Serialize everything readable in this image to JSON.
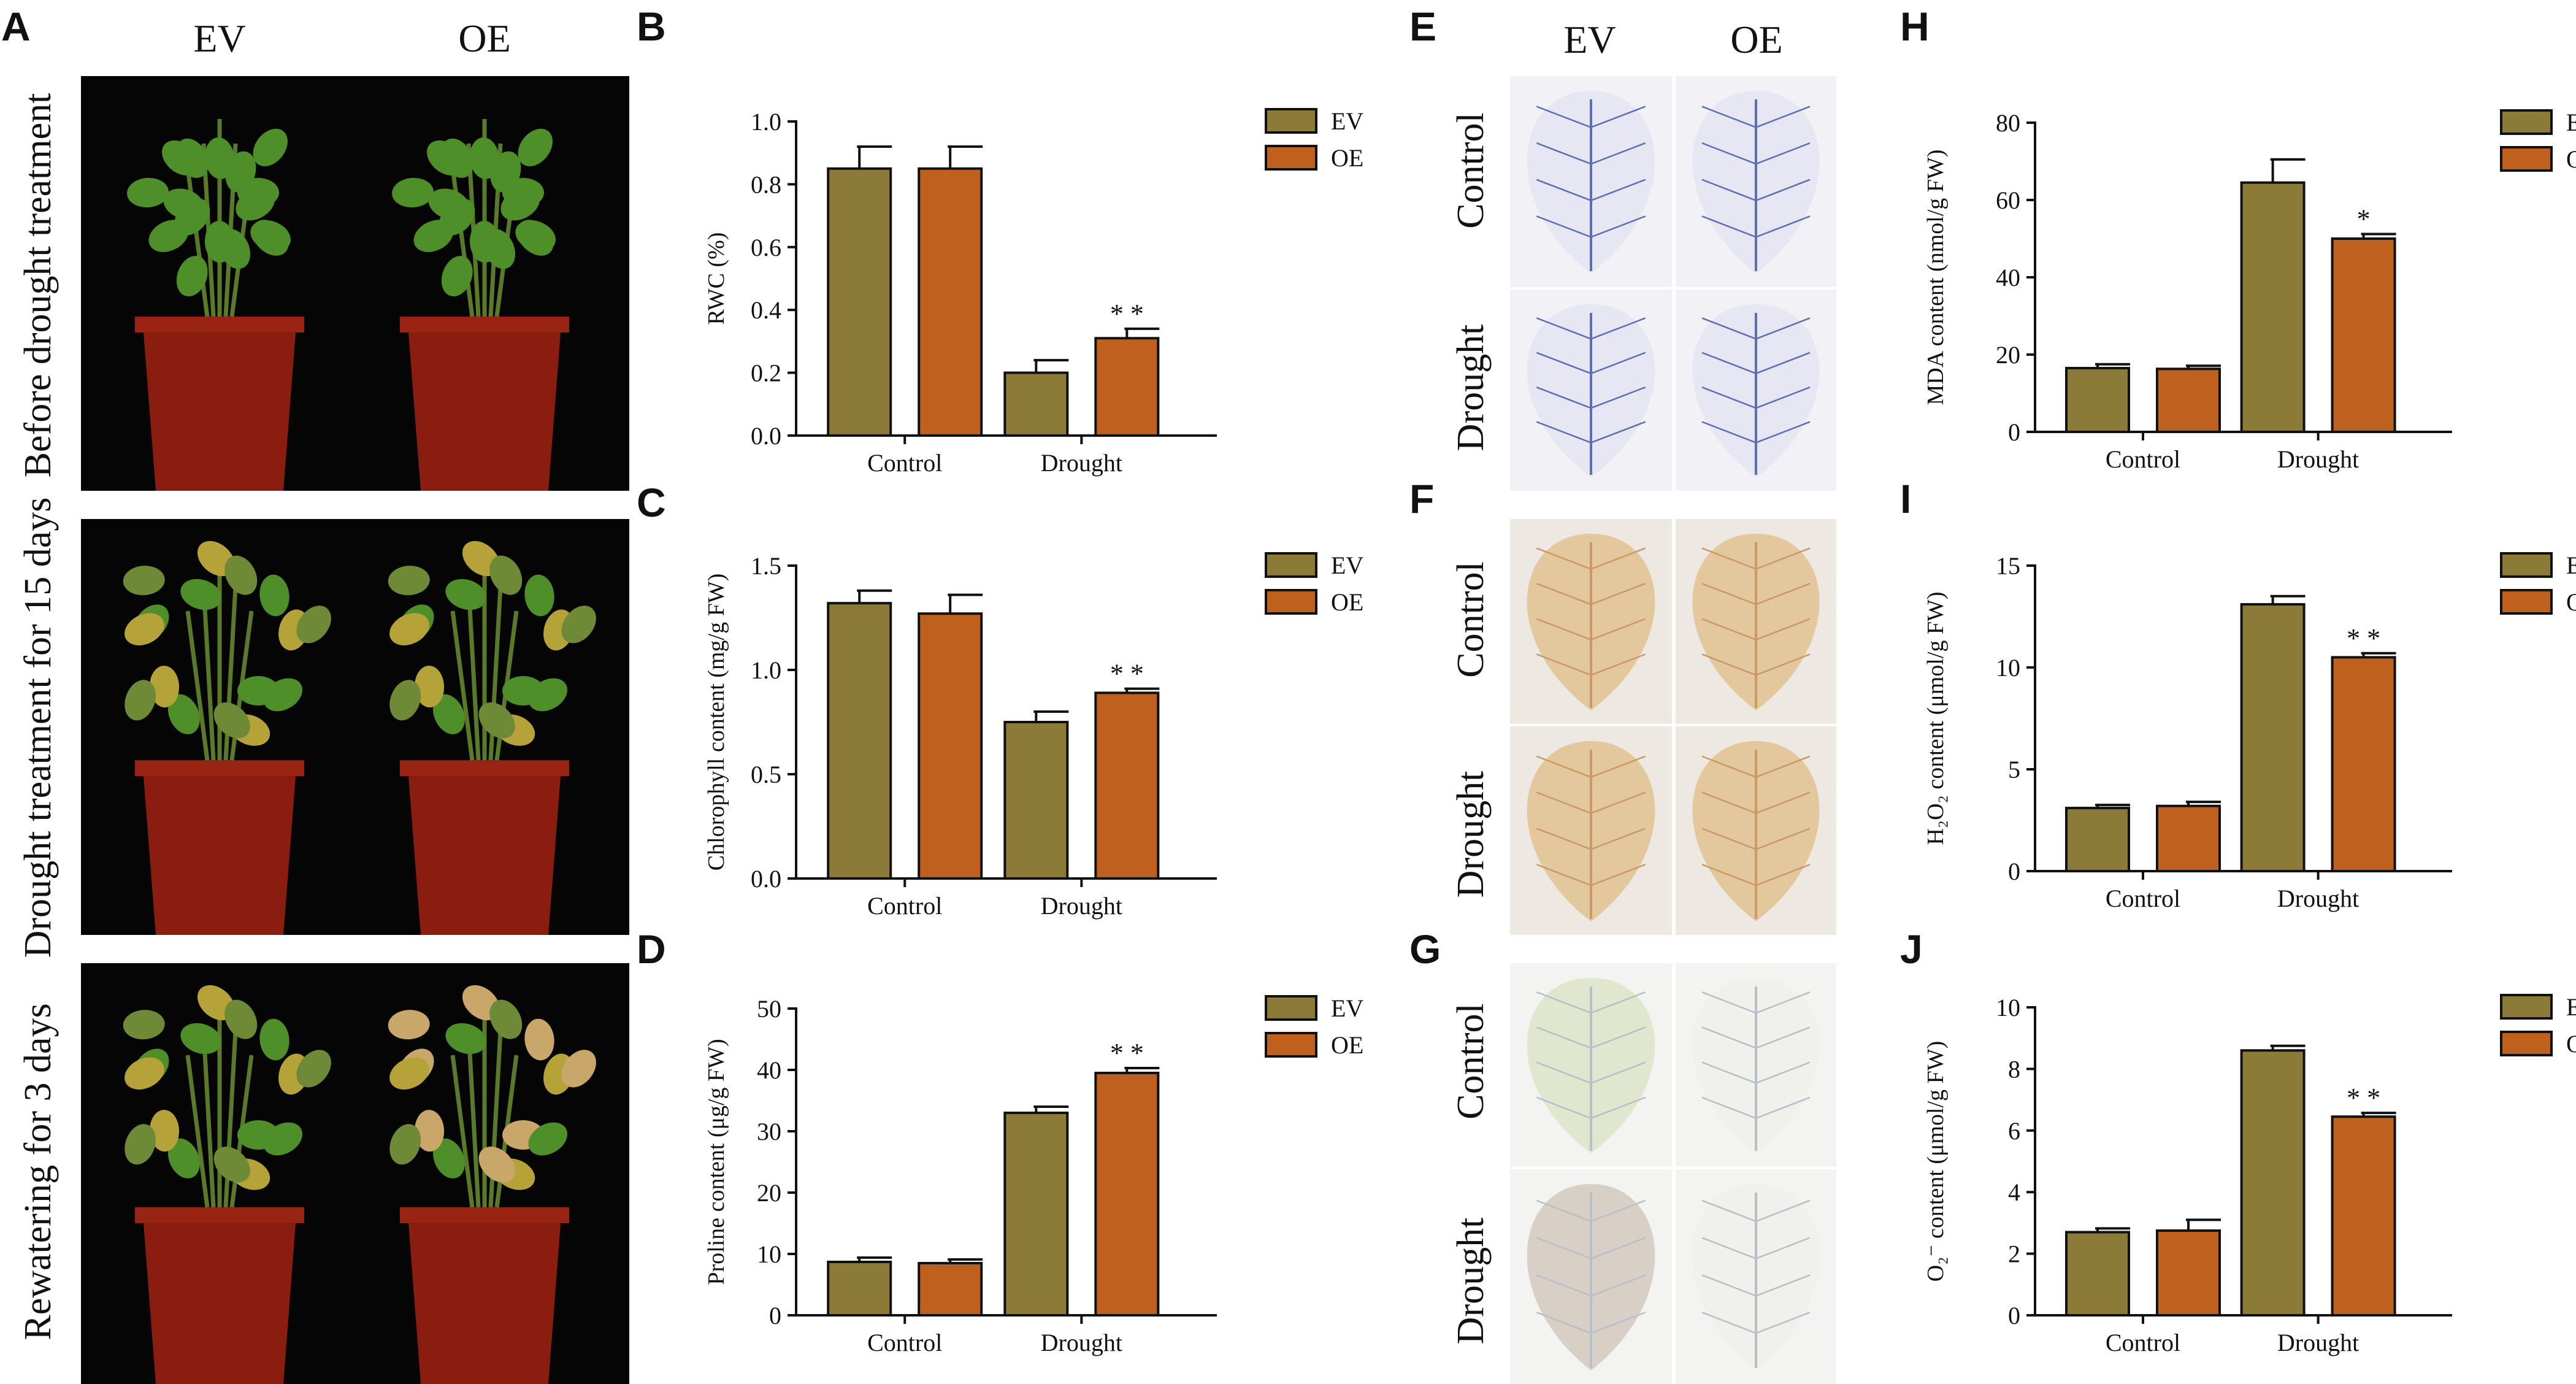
{
  "panel_labels": {
    "A": "A",
    "B": "B",
    "C": "C",
    "D": "D",
    "E": "E",
    "F": "F",
    "G": "G",
    "H": "H",
    "I": "I",
    "J": "J"
  },
  "photo_columns": {
    "ev": "EV",
    "oe": "OE"
  },
  "photo_rows": [
    "Before drought treatment",
    "Drought treatment for 15 days",
    "Rewatering for 3 days"
  ],
  "stain_rows": {
    "control": "Control",
    "drought": "Drought"
  },
  "colors": {
    "EV": "#8b7a38",
    "OE": "#c0601e",
    "plant_bg": "#050505",
    "pot": "#8a1d10",
    "leaf_healthy": "#4f8f2a",
    "leaf_yellow": "#b5a33a",
    "nbt_bg": "#f2f1f5",
    "nbt_stain": "#5d6fb4",
    "dab_bg": "#ede9e2",
    "dab_leaf": "#e3c79d",
    "evans_bg": "#f3f3f1",
    "evans_leaf": "#e1e6cf"
  },
  "chart_data": [
    {
      "id": "B",
      "type": "bar",
      "categories": [
        "Control",
        "Drought"
      ],
      "ylabel": "RWC (%)",
      "ylim": [
        0,
        1.0
      ],
      "yticks": [
        "0.0",
        "0.2",
        "0.4",
        "0.6",
        "0.8",
        "1.0"
      ],
      "series": [
        {
          "name": "EV",
          "values": [
            0.85,
            0.2
          ],
          "errors": [
            0.07,
            0.04
          ]
        },
        {
          "name": "OE",
          "values": [
            0.85,
            0.31
          ],
          "errors": [
            0.07,
            0.03
          ]
        }
      ],
      "annotations": [
        {
          "category": "Drought",
          "series": "OE",
          "text": "* *"
        }
      ],
      "legend": [
        "EV",
        "OE"
      ]
    },
    {
      "id": "C",
      "type": "bar",
      "categories": [
        "Control",
        "Drought"
      ],
      "ylabel": "Chlorophyll content (mg/g FW)",
      "ylim": [
        0,
        1.5
      ],
      "yticks": [
        "0.0",
        "0.5",
        "1.0",
        "1.5"
      ],
      "series": [
        {
          "name": "EV",
          "values": [
            1.32,
            0.75
          ],
          "errors": [
            0.06,
            0.05
          ]
        },
        {
          "name": "OE",
          "values": [
            1.27,
            0.89
          ],
          "errors": [
            0.09,
            0.02
          ]
        }
      ],
      "annotations": [
        {
          "category": "Drought",
          "series": "OE",
          "text": "* *"
        }
      ],
      "legend": [
        "EV",
        "OE"
      ]
    },
    {
      "id": "D",
      "type": "bar",
      "categories": [
        "Control",
        "Drought"
      ],
      "ylabel": "Proline content (μg/g FW)",
      "ylim": [
        0,
        50
      ],
      "yticks": [
        "0",
        "10",
        "20",
        "30",
        "40",
        "50"
      ],
      "series": [
        {
          "name": "EV",
          "values": [
            8.7,
            33
          ],
          "errors": [
            0.7,
            1.0
          ]
        },
        {
          "name": "OE",
          "values": [
            8.5,
            39.5
          ],
          "errors": [
            0.6,
            0.8
          ]
        }
      ],
      "annotations": [
        {
          "category": "Drought",
          "series": "OE",
          "text": "* *"
        }
      ],
      "legend": [
        "EV",
        "OE"
      ]
    },
    {
      "id": "H",
      "type": "bar",
      "categories": [
        "Control",
        "Drought"
      ],
      "ylabel": "MDA  content  (nmol/g FW)",
      "ylim": [
        0,
        80
      ],
      "yticks": [
        "0",
        "20",
        "40",
        "60",
        "80"
      ],
      "series": [
        {
          "name": "EV",
          "values": [
            16.5,
            64.5
          ],
          "errors": [
            1.0,
            6.0
          ]
        },
        {
          "name": "OE",
          "values": [
            16.3,
            50
          ],
          "errors": [
            0.8,
            1.2
          ]
        }
      ],
      "annotations": [
        {
          "category": "Drought",
          "series": "OE",
          "text": "*"
        }
      ],
      "legend": [
        "EV",
        "OE"
      ]
    },
    {
      "id": "I",
      "type": "bar",
      "categories": [
        "Control",
        "Drought"
      ],
      "ylabel": "H₂O₂ content  (μmol/g FW)",
      "ylim": [
        0,
        15
      ],
      "yticks": [
        "0",
        "5",
        "10",
        "15"
      ],
      "series": [
        {
          "name": "EV",
          "values": [
            3.1,
            13.1
          ],
          "errors": [
            0.15,
            0.4
          ]
        },
        {
          "name": "OE",
          "values": [
            3.2,
            10.5
          ],
          "errors": [
            0.2,
            0.2
          ]
        }
      ],
      "annotations": [
        {
          "category": "Drought",
          "series": "OE",
          "text": "* *"
        }
      ],
      "legend": [
        "EV",
        "OE"
      ]
    },
    {
      "id": "J",
      "type": "bar",
      "categories": [
        "Control",
        "Drought"
      ],
      "ylabel": "O₂⁻ content (μmol/g FW)",
      "ylim": [
        0,
        10
      ],
      "yticks": [
        "0",
        "2",
        "4",
        "6",
        "8",
        "10"
      ],
      "series": [
        {
          "name": "EV",
          "values": [
            2.7,
            8.6
          ],
          "errors": [
            0.12,
            0.15
          ]
        },
        {
          "name": "OE",
          "values": [
            2.75,
            6.45
          ],
          "errors": [
            0.35,
            0.12
          ]
        }
      ],
      "annotations": [
        {
          "category": "Drought",
          "series": "OE",
          "text": "* *"
        }
      ],
      "legend": [
        "EV",
        "OE"
      ]
    }
  ]
}
